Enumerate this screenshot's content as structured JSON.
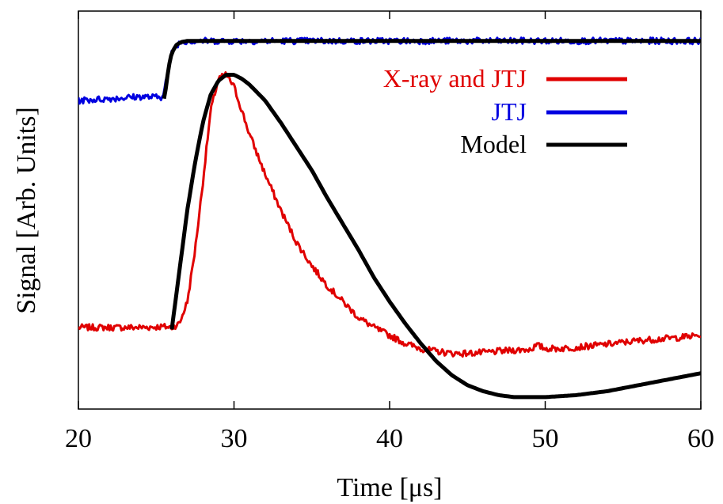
{
  "chart_data": {
    "type": "line",
    "xlabel": "Time [μs]",
    "ylabel": "Signal [Arb. Units]",
    "xlim": [
      20,
      60
    ],
    "ylim": [
      0,
      1
    ],
    "x_ticks": [
      20,
      30,
      40,
      50,
      60
    ],
    "x_tick_labels": [
      "20",
      "30",
      "40",
      "50",
      "60"
    ],
    "y_ticks_shown": false,
    "grid": false,
    "legend_position": "top-right",
    "series": [
      {
        "name": "X-ray and JTJ",
        "color": "#e00000",
        "noisy": true,
        "x": [
          20,
          22,
          24,
          25.5,
          26,
          26.5,
          27,
          27.5,
          28,
          28.5,
          29,
          29.5,
          30,
          30.5,
          31,
          32,
          33,
          34,
          35,
          36,
          37,
          38,
          39,
          40,
          41,
          42,
          43,
          44,
          45,
          46,
          47,
          48,
          49,
          49.5,
          50,
          51,
          52,
          54,
          56,
          58,
          60
        ],
        "y": [
          0.205,
          0.205,
          0.205,
          0.207,
          0.205,
          0.215,
          0.27,
          0.4,
          0.57,
          0.75,
          0.83,
          0.84,
          0.81,
          0.75,
          0.69,
          0.59,
          0.5,
          0.42,
          0.36,
          0.31,
          0.27,
          0.23,
          0.205,
          0.185,
          0.165,
          0.152,
          0.145,
          0.14,
          0.14,
          0.142,
          0.145,
          0.148,
          0.15,
          0.16,
          0.152,
          0.152,
          0.155,
          0.163,
          0.172,
          0.178,
          0.185
        ]
      },
      {
        "name": "JTJ",
        "color": "#0000e0",
        "noisy": true,
        "x": [
          20,
          22,
          24,
          25.3,
          25.5,
          25.8,
          26,
          26.3,
          26.6,
          27,
          30,
          35,
          40,
          45,
          50,
          55,
          60
        ],
        "y": [
          0.775,
          0.78,
          0.785,
          0.783,
          0.8,
          0.855,
          0.895,
          0.915,
          0.922,
          0.925,
          0.925,
          0.925,
          0.925,
          0.925,
          0.925,
          0.925,
          0.925
        ]
      },
      {
        "name": "Model",
        "color": "#000000",
        "noisy": false,
        "x": [
          25.5,
          25.6,
          25.8,
          26,
          26.3,
          26.6,
          27,
          28,
          30,
          35,
          40,
          45,
          50,
          55,
          60
        ],
        "y": [
          0.78,
          0.8,
          0.86,
          0.895,
          0.915,
          0.922,
          0.925,
          0.925,
          0.925,
          0.925,
          0.925,
          0.925,
          0.925,
          0.925,
          0.925
        ]
      },
      {
        "name": "",
        "legend": false,
        "color": "#000000",
        "noisy": false,
        "x": [
          26,
          26.5,
          27,
          27.5,
          28,
          28.5,
          29,
          29.5,
          30,
          30.5,
          31,
          32,
          33,
          34,
          35,
          36,
          37,
          38,
          39,
          40,
          41,
          42,
          43,
          44,
          45,
          46,
          47,
          48,
          49,
          50,
          52,
          54,
          56,
          58,
          60
        ],
        "y": [
          0.2,
          0.35,
          0.5,
          0.62,
          0.72,
          0.79,
          0.825,
          0.84,
          0.84,
          0.83,
          0.815,
          0.775,
          0.72,
          0.66,
          0.6,
          0.53,
          0.465,
          0.4,
          0.33,
          0.27,
          0.215,
          0.165,
          0.12,
          0.085,
          0.06,
          0.045,
          0.035,
          0.03,
          0.03,
          0.03,
          0.035,
          0.045,
          0.06,
          0.075,
          0.09
        ]
      }
    ]
  }
}
